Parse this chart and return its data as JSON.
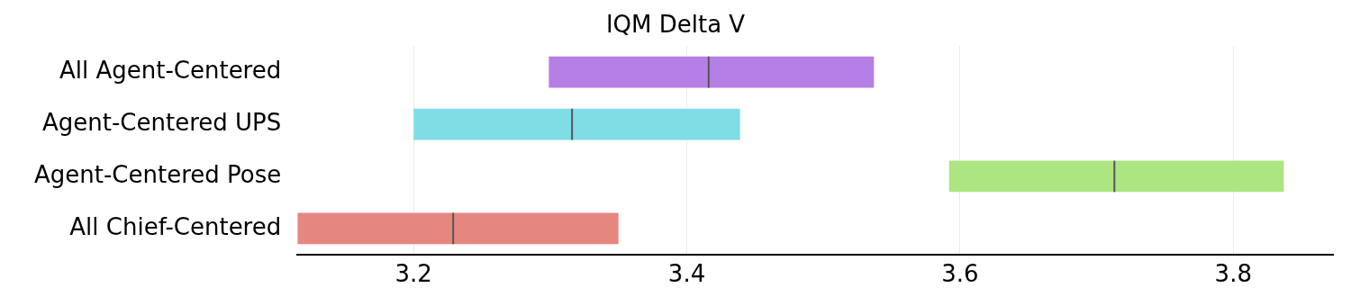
{
  "chart_data": {
    "type": "box",
    "title": "IQM Delta V",
    "orientation": "horizontal",
    "categories": [
      "All Agent-Centered",
      "Agent-Centered UPS",
      "Agent-Centered Pose",
      "All Chief-Centered"
    ],
    "boxes": [
      {
        "low": 3.299,
        "q1": 3.299,
        "median": 3.416,
        "q3": 3.537,
        "high": 3.537
      },
      {
        "low": 3.2,
        "q1": 3.2,
        "median": 3.316,
        "q3": 3.439,
        "high": 3.439
      },
      {
        "low": 3.592,
        "q1": 3.592,
        "median": 3.713,
        "q3": 3.837,
        "high": 3.837
      },
      {
        "low": 3.115,
        "q1": 3.115,
        "median": 3.229,
        "q3": 3.35,
        "high": 3.35
      }
    ],
    "colors": [
      "#b57fe5",
      "#80dde6",
      "#ade582",
      "#e58780"
    ],
    "xlim": [
      3.115,
      3.873
    ],
    "xticks": [
      3.2,
      3.4,
      3.6,
      3.8
    ],
    "grid": "x",
    "legend": false
  }
}
